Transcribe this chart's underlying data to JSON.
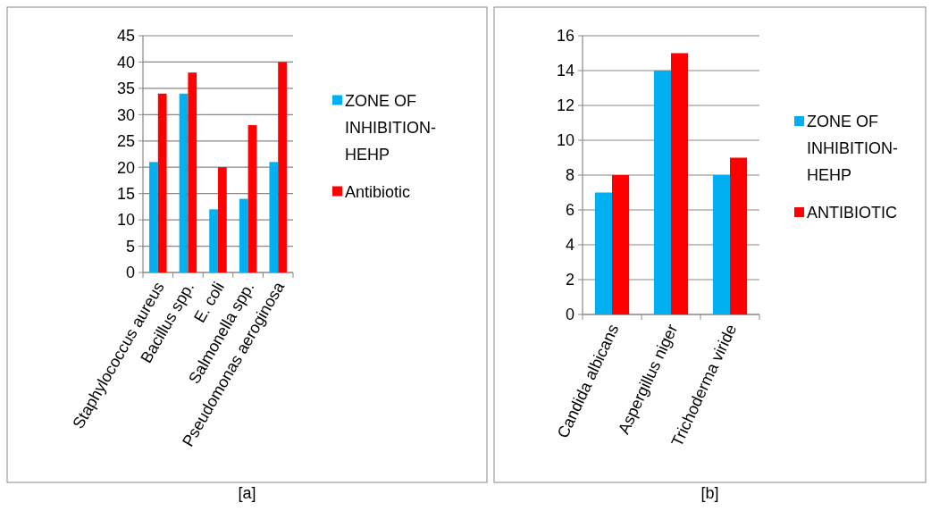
{
  "chart_data": [
    {
      "type": "bar",
      "categories": [
        "Staphylococcus aureus",
        "Bacillus spp.",
        "E. coli",
        "Salmonella spp.",
        "Pseudomonas aeroginosa"
      ],
      "series": [
        {
          "name": "ZONE OF INHIBITION-HEHP",
          "color": "#00b0f0",
          "values": [
            21,
            34,
            12,
            14,
            21
          ]
        },
        {
          "name": "Antibiotic",
          "color": "#ff0000",
          "values": [
            34,
            38,
            20,
            28,
            40
          ]
        }
      ],
      "ylim": [
        0,
        45
      ],
      "yticks": [
        0,
        5,
        10,
        15,
        20,
        25,
        30,
        35,
        40,
        45
      ],
      "grid": "y",
      "legend": "right",
      "annotations": [
        "[a]"
      ]
    },
    {
      "type": "bar",
      "categories": [
        "Candida albicans",
        "Aspergillus niger",
        "Trichoderma viride"
      ],
      "series": [
        {
          "name": "ZONE OF INHIBITION-HEHP",
          "color": "#00b0f0",
          "values": [
            7,
            14,
            8
          ]
        },
        {
          "name": "ANTIBIOTIC",
          "color": "#ff0000",
          "values": [
            8,
            15,
            9
          ]
        }
      ],
      "ylim": [
        0,
        16
      ],
      "yticks": [
        0,
        2,
        4,
        6,
        8,
        10,
        12,
        14,
        16
      ],
      "grid": "y",
      "legend": "right",
      "annotations": [
        "[b]"
      ]
    }
  ]
}
